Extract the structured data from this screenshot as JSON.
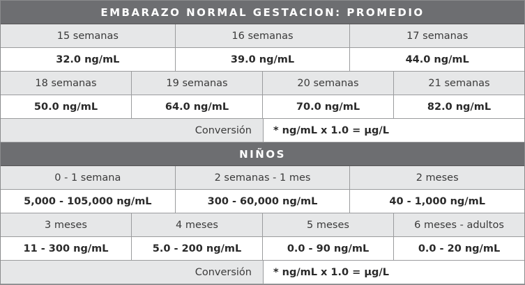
{
  "sections": [
    {
      "title": "EMBARAZO NORMAL GESTACION: PROMEDIO",
      "rows": [
        {
          "labels": [
            "15 semanas",
            "16 semanas",
            "17 semanas"
          ],
          "values": [
            "32.0 ng/mL",
            "39.0 ng/mL",
            "44.0 ng/mL"
          ]
        },
        {
          "labels": [
            "18 semanas",
            "19 semanas",
            "20 semanas",
            "21 semanas"
          ],
          "values": [
            "50.0 ng/mL",
            "64.0 ng/mL",
            "70.0 ng/mL",
            "82.0 ng/mL"
          ]
        }
      ],
      "conversion": {
        "label": "Conversión",
        "formula": "* ng/mL x 1.0 = µg/L"
      }
    },
    {
      "title": "NIÑOS",
      "rows": [
        {
          "labels": [
            "0 - 1 semana",
            "2 semanas - 1 mes",
            "2 meses"
          ],
          "values": [
            "5,000 - 105,000 ng/mL",
            "300 - 60,000 ng/mL",
            "40 - 1,000 ng/mL"
          ]
        },
        {
          "labels": [
            "3 meses",
            "4 meses",
            "5 meses",
            "6 meses - adultos"
          ],
          "values": [
            "11 - 300 ng/mL",
            "5.0 - 200 ng/mL",
            "0.0 - 90 ng/mL",
            "0.0 - 20 ng/mL"
          ]
        }
      ],
      "conversion": {
        "label": "Conversión",
        "formula": "* ng/mL x 1.0 = µg/L"
      }
    }
  ]
}
